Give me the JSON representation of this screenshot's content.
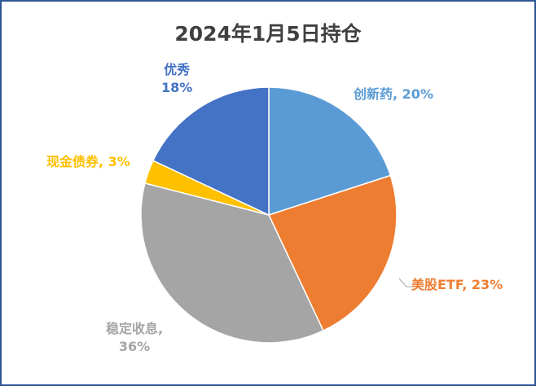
{
  "chart_data": {
    "type": "pie",
    "title": "2024年1月5日持仓",
    "start_angle_deg": 0,
    "direction": "clockwise",
    "slices": [
      {
        "name": "创新药",
        "value": 20,
        "label": "20%",
        "color": "#5b9bd5"
      },
      {
        "name": "美股ETF",
        "value": 23,
        "label": "23%",
        "color": "#ed7d31"
      },
      {
        "name": "稳定收息,",
        "value": 36,
        "label": "36%",
        "color": "#a5a5a5"
      },
      {
        "name": "现金债券",
        "value": 3,
        "label": "3%",
        "color": "#ffc000"
      },
      {
        "name": "优秀",
        "value": 18,
        "label": "18%",
        "color": "#4472c4"
      }
    ],
    "frame_color": "#2f5597"
  }
}
